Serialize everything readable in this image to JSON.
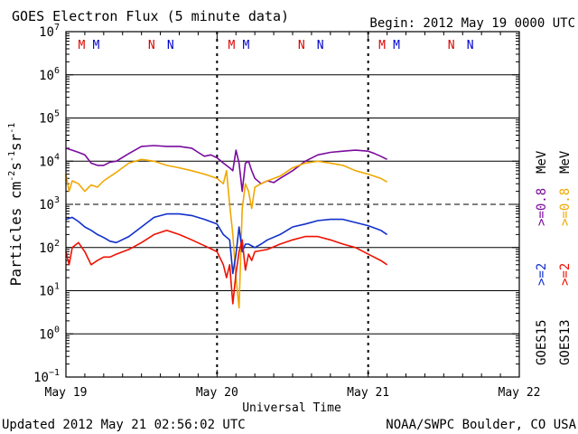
{
  "chart_data": {
    "type": "line",
    "title": "GOES Electron Flux (5 minute data)",
    "subtitle": "Begin: 2012 May 19 0000 UTC",
    "xlabel": "Universal Time",
    "ylabel": "Particles cm",
    "ylabel_sup1": "-2",
    "ylabel_mid1": "s",
    "ylabel_sup2": "-1",
    "ylabel_mid2": "sr",
    "ylabel_sup3": "-1",
    "x_tick_labels": [
      "May 19",
      "May 20",
      "May 21",
      "May 22"
    ],
    "x_range_hours": [
      0,
      72
    ],
    "y_scale": "log",
    "y_exponents": [
      -1,
      0,
      1,
      2,
      3,
      4,
      5,
      6,
      7
    ],
    "y_tick_base": "10",
    "ylim": [
      0.1,
      10000000
    ],
    "threshold_line": 1000,
    "grid": "horizontal at each decade, vertical day separators dotted",
    "mn_markers": {
      "labels": [
        {
          "t": 2.5,
          "text": "M",
          "color": "#dd0000"
        },
        {
          "t": 4.8,
          "text": "M",
          "color": "#0000cc"
        },
        {
          "t": 13.6,
          "text": "N",
          "color": "#dd0000"
        },
        {
          "t": 16.6,
          "text": "N",
          "color": "#0000cc"
        },
        {
          "t": 26.3,
          "text": "M",
          "color": "#dd0000"
        },
        {
          "t": 28.6,
          "text": "M",
          "color": "#0000cc"
        },
        {
          "t": 37.4,
          "text": "N",
          "color": "#dd0000"
        },
        {
          "t": 40.4,
          "text": "N",
          "color": "#0000cc"
        },
        {
          "t": 50.2,
          "text": "M",
          "color": "#dd0000"
        },
        {
          "t": 52.5,
          "text": "M",
          "color": "#0000cc"
        },
        {
          "t": 61.2,
          "text": "N",
          "color": "#dd0000"
        },
        {
          "t": 64.2,
          "text": "N",
          "color": "#0000cc"
        }
      ]
    },
    "series": [
      {
        "name": ">=0.8 MeV",
        "key": "goes15_08",
        "color": "#7a0a9e",
        "x": [
          0,
          1,
          2,
          3,
          4,
          5,
          6,
          7,
          8,
          10,
          12,
          14,
          16,
          18,
          20,
          21,
          22,
          23,
          24,
          25,
          26,
          26.5,
          27,
          27.5,
          28,
          28.5,
          29,
          29.5,
          30,
          31,
          32,
          33,
          34,
          36,
          38,
          40,
          42,
          44,
          46,
          48,
          49,
          50,
          51
        ],
        "y": [
          20000,
          18000,
          16000,
          14000,
          9000,
          8000,
          8000,
          9500,
          10000,
          15000,
          22000,
          23000,
          22000,
          22000,
          20000,
          16000,
          13000,
          14000,
          12000,
          9000,
          7000,
          6000,
          18000,
          9000,
          2000,
          9000,
          10000,
          6000,
          4000,
          3000,
          3500,
          3200,
          4000,
          6000,
          10000,
          14000,
          16000,
          17000,
          18000,
          17000,
          15000,
          13000,
          11000
        ]
      },
      {
        "name": ">=0.8 MeV",
        "key": "goes13_08",
        "color": "#f0a800",
        "x": [
          0,
          0.5,
          1,
          2,
          3,
          4,
          5,
          6,
          8,
          10,
          12,
          14,
          16,
          18,
          20,
          22,
          24,
          25,
          25.5,
          26,
          26.5,
          27,
          27.5,
          28,
          28.5,
          29,
          29.5,
          30,
          31,
          32,
          34,
          36,
          38,
          40,
          42,
          44,
          46,
          48,
          50,
          51
        ],
        "y": [
          5000,
          2000,
          3500,
          3000,
          2000,
          2800,
          2500,
          3500,
          5500,
          9000,
          11000,
          10000,
          8000,
          7000,
          6000,
          5000,
          4000,
          3000,
          6000,
          1000,
          200,
          20,
          4,
          800,
          3000,
          2000,
          800,
          2500,
          3000,
          3500,
          4500,
          7000,
          9000,
          10000,
          9000,
          8000,
          6000,
          5000,
          4000,
          3300
        ]
      },
      {
        "name": ">=2 MeV",
        "key": "goes15_2",
        "color": "#1030cc",
        "x": [
          0,
          1,
          2,
          3,
          4,
          5,
          6,
          7,
          8,
          10,
          12,
          14,
          16,
          18,
          20,
          22,
          24,
          25,
          26,
          26.5,
          27,
          27.5,
          28,
          28.5,
          29,
          30,
          31,
          32,
          34,
          36,
          38,
          40,
          42,
          44,
          46,
          48,
          50,
          51
        ],
        "y": [
          450,
          500,
          400,
          300,
          250,
          200,
          170,
          140,
          130,
          180,
          300,
          500,
          600,
          600,
          550,
          450,
          350,
          200,
          150,
          25,
          70,
          300,
          80,
          120,
          120,
          100,
          120,
          150,
          200,
          300,
          350,
          420,
          450,
          450,
          380,
          320,
          250,
          200
        ]
      },
      {
        "name": ">=2 MeV",
        "key": "goes13_2",
        "color": "#ee1100",
        "x": [
          0,
          0.5,
          1,
          2,
          3,
          4,
          5,
          6,
          7,
          8,
          10,
          12,
          14,
          16,
          18,
          20,
          22,
          24,
          25,
          25.5,
          26,
          26.5,
          27,
          27.5,
          28,
          28.5,
          29,
          29.5,
          30,
          32,
          34,
          36,
          38,
          40,
          42,
          44,
          46,
          48,
          50,
          51
        ],
        "y": [
          80,
          40,
          100,
          130,
          80,
          40,
          50,
          60,
          60,
          70,
          90,
          130,
          200,
          250,
          200,
          150,
          110,
          80,
          40,
          20,
          40,
          5,
          25,
          80,
          150,
          30,
          70,
          50,
          80,
          90,
          120,
          150,
          180,
          180,
          150,
          120,
          100,
          70,
          50,
          40
        ]
      }
    ]
  },
  "right_legend": {
    "goes15": "GOES15",
    "goes13": "GOES13",
    "gt2": ">=2",
    "gt08": ">=0.8",
    "mev": "MeV"
  },
  "footer": {
    "updated": "Updated 2012 May 21 02:56:02 UTC",
    "source": "NOAA/SWPC Boulder, CO USA"
  },
  "colors": {
    "goes15_2": "#1030cc",
    "goes13_2": "#ee1100",
    "goes15_08": "#7a0a9e",
    "goes13_08": "#f0a800"
  }
}
